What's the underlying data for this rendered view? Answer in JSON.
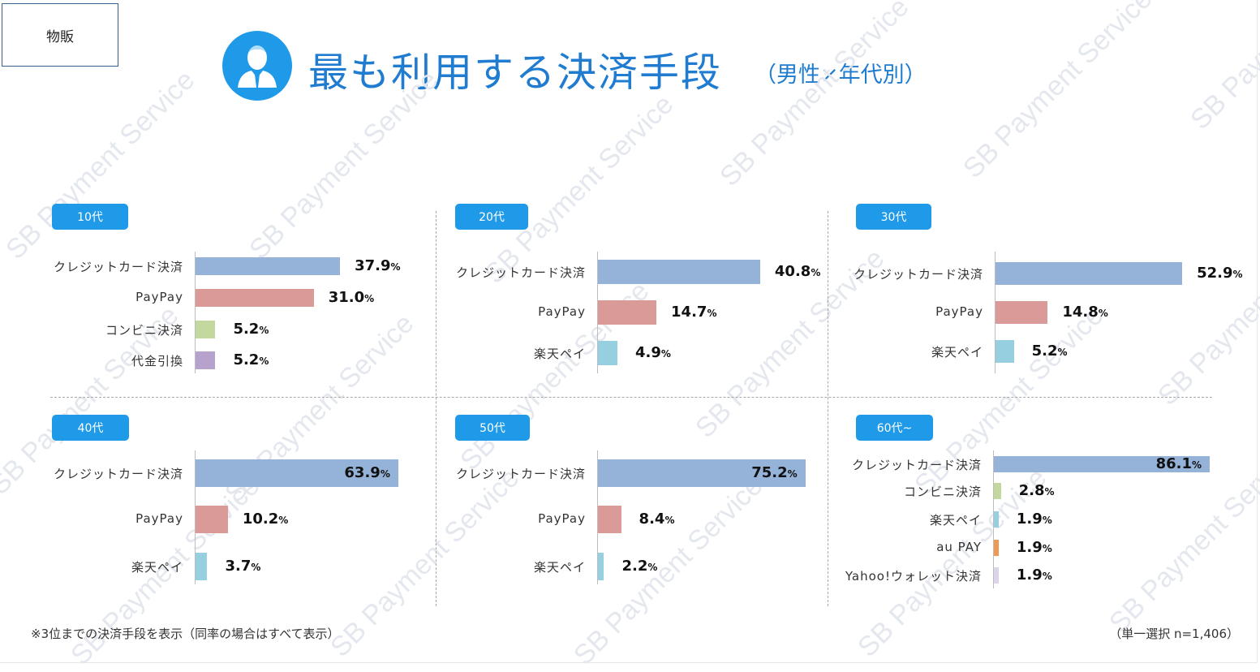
{
  "category_tag": "物販",
  "title": "最も利用する決済手段",
  "subtitle": "（男性×年代別）",
  "watermark": "SB Payment Service",
  "footnote": "※3位までの決済手段を表示（同率の場合はすべて表示）",
  "sample_note": "（単一選択 n=1,406）",
  "colors": {
    "accent": "#1f9ae8",
    "クレジットカード決済": "#95b2d8",
    "PayPay": "#d99a98",
    "コンビニ決済": "#c3d89e",
    "代金引換": "#b6a2cc",
    "楽天ペイ": "#96cfe0",
    "au PAY": "#ec9a55",
    "Yahoo!ウォレット決済": "#dcd4ea"
  },
  "chart_data": [
    {
      "type": "bar",
      "title": "10代",
      "value_unit": "%",
      "categories": [
        "クレジットカード決済",
        "PayPay",
        "コンビニ決済",
        "代金引換"
      ],
      "values": [
        37.9,
        31.0,
        5.2,
        5.2
      ],
      "value_labels": [
        "37.9",
        "31.0",
        "5.2",
        "5.2"
      ]
    },
    {
      "type": "bar",
      "title": "20代",
      "value_unit": "%",
      "categories": [
        "クレジットカード決済",
        "PayPay",
        "楽天ペイ"
      ],
      "values": [
        40.8,
        14.7,
        4.9
      ],
      "value_labels": [
        "40.8",
        "14.7",
        "4.9"
      ]
    },
    {
      "type": "bar",
      "title": "30代",
      "value_unit": "%",
      "categories": [
        "クレジットカード決済",
        "PayPay",
        "楽天ペイ"
      ],
      "values": [
        52.9,
        14.8,
        5.2
      ],
      "value_labels": [
        "52.9",
        "14.8",
        "5.2"
      ]
    },
    {
      "type": "bar",
      "title": "40代",
      "value_unit": "%",
      "categories": [
        "クレジットカード決済",
        "PayPay",
        "楽天ペイ"
      ],
      "values": [
        63.9,
        10.2,
        3.7
      ],
      "value_labels": [
        "63.9",
        "10.2",
        "3.7"
      ]
    },
    {
      "type": "bar",
      "title": "50代",
      "value_unit": "%",
      "categories": [
        "クレジットカード決済",
        "PayPay",
        "楽天ペイ"
      ],
      "values": [
        75.2,
        8.4,
        2.2
      ],
      "value_labels": [
        "75.2",
        "8.4",
        "2.2"
      ]
    },
    {
      "type": "bar",
      "title": "60代~",
      "value_unit": "%",
      "categories": [
        "クレジットカード決済",
        "コンビニ決済",
        "楽天ペイ",
        "au PAY",
        "Yahoo!ウォレット決済"
      ],
      "values": [
        86.1,
        2.8,
        1.9,
        1.9,
        1.9
      ],
      "value_labels": [
        "86.1",
        "2.8",
        "1.9",
        "1.9",
        "1.9"
      ]
    }
  ]
}
